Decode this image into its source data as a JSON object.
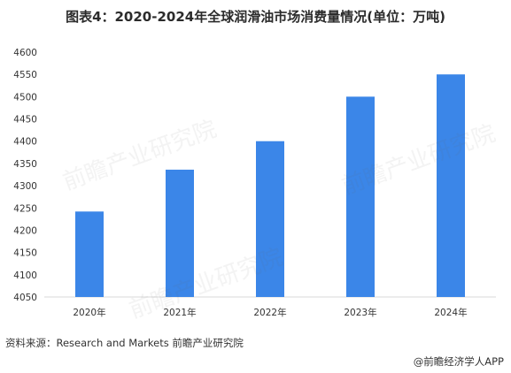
{
  "title": "图表4：2020-2024年全球润滑油市场消费量情况(单位：万吨)",
  "source_text": "资料来源：Research and Markets 前瞻产业研究院",
  "brand_text": "@前瞻经济学人APP",
  "watermark_text": "前瞻产业研究院",
  "colors": {
    "bar": "#3b86e8",
    "axis": "#d9d9d9",
    "text": "#333333"
  },
  "chart_data": {
    "type": "bar",
    "categories": [
      "2020年",
      "2021年",
      "2022年",
      "2023年",
      "2024年"
    ],
    "values": [
      4242,
      4336,
      4400,
      4500,
      4550
    ],
    "ylim": [
      4050,
      4600
    ],
    "yticks": [
      4050,
      4100,
      4150,
      4200,
      4250,
      4300,
      4350,
      4400,
      4450,
      4500,
      4550,
      4600
    ],
    "grid": false,
    "legend": "none"
  }
}
